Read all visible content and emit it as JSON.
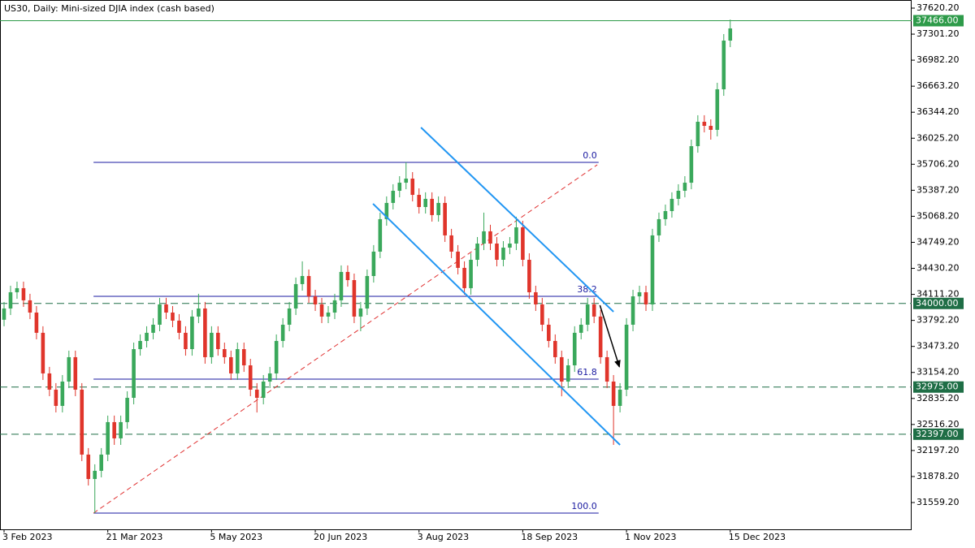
{
  "chart_data": {
    "type": "candlestick",
    "title": "US30, Daily:  Mini-sized DJIA index (cash based)",
    "up_color": "#3aa85b",
    "down_color": "#e0352b",
    "categories": [
      "3 Feb 2023",
      null,
      null,
      null,
      null,
      null,
      null,
      null,
      null,
      null,
      null,
      null,
      null,
      null,
      null,
      null,
      "21 Mar 2023",
      null,
      null,
      null,
      null,
      null,
      null,
      null,
      null,
      null,
      null,
      null,
      null,
      null,
      null,
      null,
      "5 May 2023",
      null,
      null,
      null,
      null,
      null,
      null,
      null,
      null,
      null,
      null,
      null,
      null,
      null,
      null,
      null,
      "20 Jun 2023",
      null,
      null,
      null,
      null,
      null,
      null,
      null,
      null,
      null,
      null,
      null,
      null,
      null,
      null,
      null,
      "3 Aug 2023",
      null,
      null,
      null,
      null,
      null,
      null,
      null,
      null,
      null,
      null,
      null,
      null,
      null,
      null,
      null,
      "18 Sep 2023",
      null,
      null,
      null,
      null,
      null,
      null,
      null,
      null,
      null,
      null,
      null,
      null,
      null,
      null,
      null,
      "1 Nov 2023",
      null,
      null,
      null,
      null,
      null,
      null,
      null,
      null,
      null,
      null,
      null,
      null,
      null,
      null,
      null,
      "15 Dec 2023"
    ],
    "open": [
      33800,
      33938,
      34137,
      34187,
      34038,
      33888,
      33640,
      33142,
      32943,
      32744,
      33042,
      33341,
      32943,
      32147,
      31848,
      31948,
      32147,
      32545,
      32346,
      32545,
      32843,
      33440,
      33540,
      33640,
      33739,
      33988,
      33888,
      33789,
      33640,
      33440,
      33839,
      33938,
      33341,
      33640,
      33440,
      33341,
      33142,
      33440,
      33241,
      32943,
      32843,
      33042,
      33142,
      33540,
      33739,
      33938,
      34237,
      34336,
      34087,
      33988,
      33839,
      33888,
      34038,
      34386,
      34286,
      33839,
      33938,
      34336,
      34635,
      35033,
      35232,
      35381,
      35480,
      35530,
      35331,
      35182,
      35282,
      35083,
      35232,
      34834,
      34635,
      34436,
      34187,
      34535,
      34734,
      34884,
      34734,
      34535,
      34684,
      34734,
      34933,
      34535,
      34137,
      33988,
      33739,
      33540,
      33341,
      33042,
      33241,
      33640,
      33739,
      33988,
      33839,
      33341,
      33042,
      32744,
      32943,
      33739,
      34087,
      34137,
      33988,
      34834,
      35033,
      35132,
      35282,
      35381,
      35480,
      35928,
      36227,
      36177,
      36128,
      36625,
      37222
    ],
    "high": [
      34018,
      34217,
      34267,
      34267,
      34118,
      33968,
      33720,
      33222,
      33023,
      33122,
      33421,
      33421,
      33023,
      32227,
      32028,
      32227,
      32625,
      32625,
      32625,
      32923,
      33520,
      33620,
      33720,
      33819,
      34068,
      34068,
      33968,
      33869,
      33720,
      33919,
      34118,
      34018,
      33720,
      33720,
      33520,
      33421,
      33520,
      33520,
      33321,
      33023,
      33122,
      33222,
      33620,
      33819,
      34018,
      34317,
      34516,
      34416,
      34167,
      34068,
      33968,
      34118,
      34466,
      34466,
      34366,
      34018,
      34416,
      34715,
      35113,
      35312,
      35461,
      35560,
      35730,
      35610,
      35411,
      35362,
      35362,
      35312,
      35312,
      34914,
      34715,
      34516,
      34615,
      34814,
      35113,
      34964,
      34814,
      34764,
      34814,
      35063,
      35013,
      34615,
      34217,
      34068,
      33819,
      33620,
      33421,
      33321,
      33720,
      33819,
      34068,
      34068,
      33919,
      33421,
      33122,
      33023,
      33819,
      34167,
      34217,
      34217,
      34914,
      35113,
      35212,
      35362,
      35461,
      35560,
      36008,
      36307,
      36307,
      36257,
      36705,
      37302,
      37480
    ],
    "low": [
      33720,
      33858,
      34057,
      33958,
      33808,
      33560,
      33062,
      32863,
      32664,
      32664,
      32962,
      32863,
      32067,
      31768,
      31430,
      31868,
      32067,
      32266,
      32266,
      32465,
      32763,
      33360,
      33460,
      33560,
      33659,
      33808,
      33709,
      33560,
      33360,
      33360,
      33759,
      33261,
      33261,
      33360,
      33261,
      33062,
      33062,
      33161,
      32863,
      32663,
      32763,
      32962,
      33062,
      33460,
      33659,
      33858,
      34157,
      34007,
      33908,
      33759,
      33759,
      33808,
      33958,
      34206,
      33759,
      33659,
      33858,
      34256,
      34555,
      34953,
      35152,
      35301,
      35400,
      35251,
      35102,
      35102,
      35003,
      35003,
      34754,
      34555,
      34356,
      34107,
      34107,
      34455,
      34654,
      34654,
      34455,
      34455,
      34604,
      34654,
      34455,
      34057,
      33908,
      33659,
      33460,
      33261,
      32862,
      32962,
      33161,
      33560,
      33659,
      33759,
      33261,
      32962,
      32266,
      32664,
      32863,
      33659,
      34007,
      33908,
      33908,
      34754,
      34953,
      35052,
      35202,
      35301,
      35400,
      35848,
      36097,
      36008,
      36048,
      36545,
      37142
    ],
    "close": [
      33938,
      34137,
      34187,
      34038,
      33888,
      33640,
      33142,
      32943,
      32744,
      33042,
      33341,
      32943,
      32147,
      31848,
      31948,
      32147,
      32545,
      32346,
      32545,
      32843,
      33440,
      33540,
      33640,
      33739,
      33988,
      33888,
      33789,
      33640,
      33440,
      33839,
      33938,
      33341,
      33640,
      33440,
      33341,
      33142,
      33440,
      33241,
      32943,
      32843,
      33042,
      33142,
      33540,
      33739,
      33938,
      34237,
      34336,
      34087,
      33988,
      33839,
      33888,
      34038,
      34386,
      34286,
      33839,
      33938,
      34336,
      34635,
      35033,
      35232,
      35381,
      35480,
      35530,
      35331,
      35182,
      35282,
      35083,
      35232,
      34834,
      34635,
      34436,
      34187,
      34535,
      34734,
      34884,
      34734,
      34535,
      34684,
      34734,
      34933,
      34535,
      34137,
      33988,
      33739,
      33540,
      33341,
      33042,
      33241,
      33640,
      33739,
      33988,
      33839,
      33341,
      33042,
      32744,
      32943,
      33739,
      34087,
      34137,
      33988,
      34834,
      35033,
      35132,
      35282,
      35381,
      35480,
      35928,
      36227,
      36177,
      36128,
      36625,
      37222,
      37371
    ],
    "ylim": [
      31230.8,
      37719.7
    ],
    "yticks": [
      {
        "value": 37620.2,
        "label": "37620.20"
      },
      {
        "value": 37301.2,
        "label": "37301.20"
      },
      {
        "value": 36982.2,
        "label": "36982.20"
      },
      {
        "value": 36663.2,
        "label": "36663.20"
      },
      {
        "value": 36344.2,
        "label": "36344.20"
      },
      {
        "value": 36025.2,
        "label": "36025.20"
      },
      {
        "value": 35706.2,
        "label": "35706.20"
      },
      {
        "value": 35387.2,
        "label": "35387.20"
      },
      {
        "value": 35068.2,
        "label": "35068.20"
      },
      {
        "value": 34749.2,
        "label": "34749.20"
      },
      {
        "value": 34430.2,
        "label": "34430.20"
      },
      {
        "value": 34111.2,
        "label": "34111.20"
      },
      {
        "value": 33792.2,
        "label": "33792.20"
      },
      {
        "value": 33473.2,
        "label": "33473.20"
      },
      {
        "value": 33154.2,
        "label": "33154.20"
      },
      {
        "value": 32835.2,
        "label": "32835.20"
      },
      {
        "value": 32516.2,
        "label": "32516.20"
      },
      {
        "value": 32197.2,
        "label": "32197.20"
      },
      {
        "value": 31878.2,
        "label": "31878.20"
      },
      {
        "value": 31559.2,
        "label": "31559.20"
      }
    ],
    "levels": [
      {
        "value": 37466,
        "label": "37466.00",
        "dashed": false,
        "color": "#2e9b4a"
      },
      {
        "value": 34000,
        "label": "34000.00",
        "dashed": true,
        "color": "#1f6e46"
      },
      {
        "value": 32975,
        "label": "32975.00",
        "dashed": true,
        "color": "#1f6e46"
      },
      {
        "value": 32397,
        "label": "32397.00",
        "dashed": true,
        "color": "#1f6e46"
      }
    ],
    "fibonacci": {
      "color": "#1a1aa0",
      "start": 13.8,
      "end": 91.7,
      "levels": [
        {
          "price": 35729,
          "text": "0.0"
        },
        {
          "price": 34087,
          "text": "38.2"
        },
        {
          "price": 33072,
          "text": "61.8"
        },
        {
          "price": 31430,
          "text": "100.0"
        }
      ]
    },
    "trendline": {
      "color": "#e03030",
      "points": [
        [
          13.8,
          31430
        ],
        [
          91.5,
          35700
        ]
      ]
    },
    "channel": {
      "color": "#2196f3",
      "lines": [
        [
          [
            64.3,
            36157
          ],
          [
            94.0,
            33898
          ]
        ],
        [
          [
            56.9,
            35222
          ],
          [
            95.0,
            32266
          ]
        ]
      ]
    },
    "arrow": {
      "color": "#000000",
      "points": [
        [
          91.9,
          33978
        ],
        [
          94.9,
          33222
        ]
      ]
    }
  }
}
